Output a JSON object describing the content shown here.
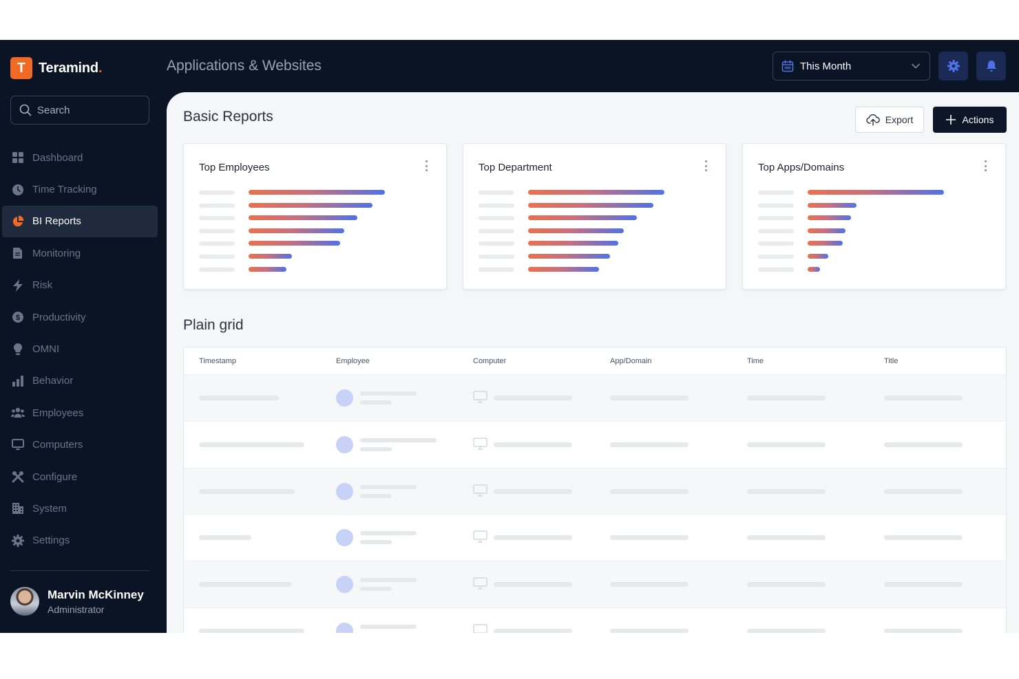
{
  "brand": {
    "name": "Teramind",
    "logo_letter": "T",
    "accent": "#f06a24"
  },
  "search": {
    "placeholder": "Search"
  },
  "nav": [
    {
      "label": "Dashboard",
      "icon": "grid-icon",
      "active": false
    },
    {
      "label": "Time Tracking",
      "icon": "clock-icon",
      "active": false
    },
    {
      "label": "BI Reports",
      "icon": "pie-chart-icon",
      "active": true
    },
    {
      "label": "Monitoring",
      "icon": "document-icon",
      "active": false
    },
    {
      "label": "Risk",
      "icon": "bolt-icon",
      "active": false
    },
    {
      "label": "Productivity",
      "icon": "dollar-icon",
      "active": false
    },
    {
      "label": "OMNI",
      "icon": "lightbulb-icon",
      "active": false
    },
    {
      "label": "Behavior",
      "icon": "bar-chart-icon",
      "active": false
    },
    {
      "label": "Employees",
      "icon": "users-icon",
      "active": false
    },
    {
      "label": "Computers",
      "icon": "monitor-icon",
      "active": false
    },
    {
      "label": "Configure",
      "icon": "tools-icon",
      "active": false
    },
    {
      "label": "System",
      "icon": "building-icon",
      "active": false
    },
    {
      "label": "Settings",
      "icon": "gear-icon",
      "active": false
    }
  ],
  "user": {
    "name": "Marvin McKinney",
    "role": "Administrator"
  },
  "header": {
    "title": "Applications & Websites",
    "date_range": "This Month"
  },
  "basic_reports": {
    "title": "Basic Reports",
    "export_label": "Export",
    "actions_label": "Actions",
    "cards": [
      {
        "title": "Top Employees",
        "bars": [
          1.0,
          0.91,
          0.8,
          0.7,
          0.67,
          0.32,
          0.28
        ]
      },
      {
        "title": "Top Department",
        "bars": [
          1.0,
          0.92,
          0.8,
          0.7,
          0.66,
          0.6,
          0.52
        ]
      },
      {
        "title": "Top Apps/Domains",
        "bars": [
          1.0,
          0.36,
          0.32,
          0.28,
          0.26,
          0.15,
          0.09
        ]
      }
    ]
  },
  "plain_grid": {
    "title": "Plain grid",
    "columns": [
      "Timestamp",
      "Employee",
      "Computer",
      "App/Domain",
      "Time",
      "Title"
    ]
  }
}
